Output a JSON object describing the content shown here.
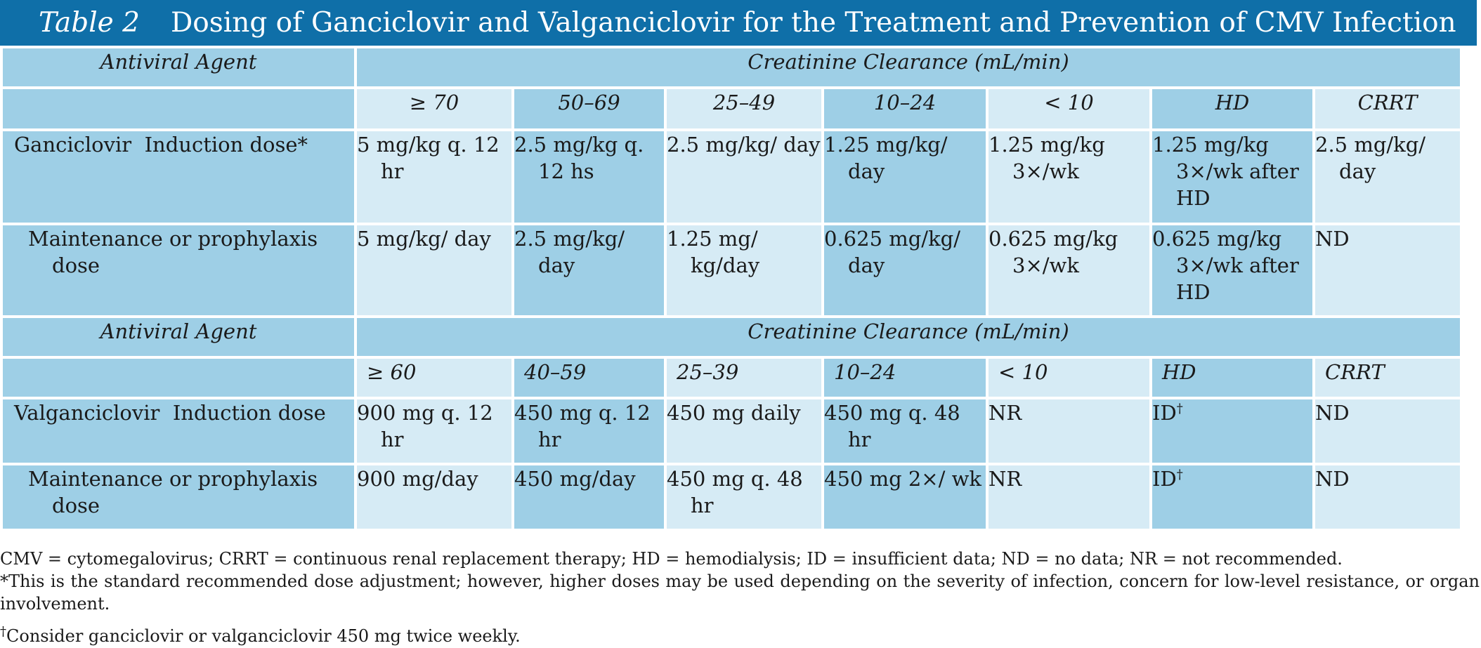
{
  "title": {
    "label": "Table 2",
    "text": "Dosing of Ganciclovir and Valganciclovir for the Treatment and Prevention of CMV Infection"
  },
  "sections": [
    {
      "agent_header": "Antiviral Agent",
      "clearance_header": "Creatinine Clearance (mL/min)",
      "columns": [
        "≥ 70",
        "50–69",
        "25–49",
        "10–24",
        "< 10",
        "HD",
        "CRRT"
      ],
      "rows": [
        {
          "label": "Ganciclovir  Induction dose*",
          "cells": [
            "5 mg/kg q. 12 hr",
            "2.5 mg/kg q. 12 hs",
            "2.5 mg/kg/ day",
            "1.25 mg/kg/ day",
            "1.25 mg/kg 3×/wk",
            "1.25 mg/kg 3×/wk after HD",
            "2.5 mg/kg/ day"
          ]
        },
        {
          "label": "Maintenance or prophylaxis dose",
          "cells": [
            "5 mg/kg/ day",
            "2.5 mg/kg/ day",
            "1.25 mg/ kg/day",
            "0.625 mg/kg/ day",
            "0.625 mg/kg 3×/wk",
            "0.625 mg/kg 3×/wk after HD",
            "ND"
          ]
        }
      ]
    },
    {
      "agent_header": "Antiviral Agent",
      "clearance_header": "Creatinine Clearance (mL/min)",
      "columns": [
        "≥ 60",
        "40–59",
        "25–39",
        "10–24",
        "< 10",
        "HD",
        "CRRT"
      ],
      "rows": [
        {
          "label": "Valganciclovir  Induction dose",
          "cells": [
            "900 mg q. 12 hr",
            "450 mg q. 12 hr",
            "450 mg daily",
            "450 mg q. 48 hr",
            "NR",
            "ID",
            "ND"
          ],
          "hd_mark": "†"
        },
        {
          "label": "Maintenance or prophylaxis dose",
          "cells": [
            "900 mg/day",
            "450 mg/day",
            "450 mg q. 48 hr",
            "450 mg 2×/ wk",
            "NR",
            "ID",
            "ND"
          ],
          "hd_mark": "†"
        }
      ]
    }
  ],
  "footnotes": {
    "abbreviations": "CMV = cytomegalovirus; CRRT = continuous renal replacement therapy; HD = hemodialysis; ID = insufficient data; ND = no data; NR = not recommended.",
    "asterisk": "*This is the standard recommended dose adjustment; however, higher doses may be used depending on the severity of infection, concern for low-level resistance, or organ involvement.",
    "dagger_mark": "†",
    "dagger": "Consider ganciclovir or valganciclovir 450 mg twice weekly."
  },
  "colors": {
    "title_bar": "#0f6fa8",
    "cell_dark": "#9ecfe6",
    "cell_light": "#d6ebf5"
  }
}
